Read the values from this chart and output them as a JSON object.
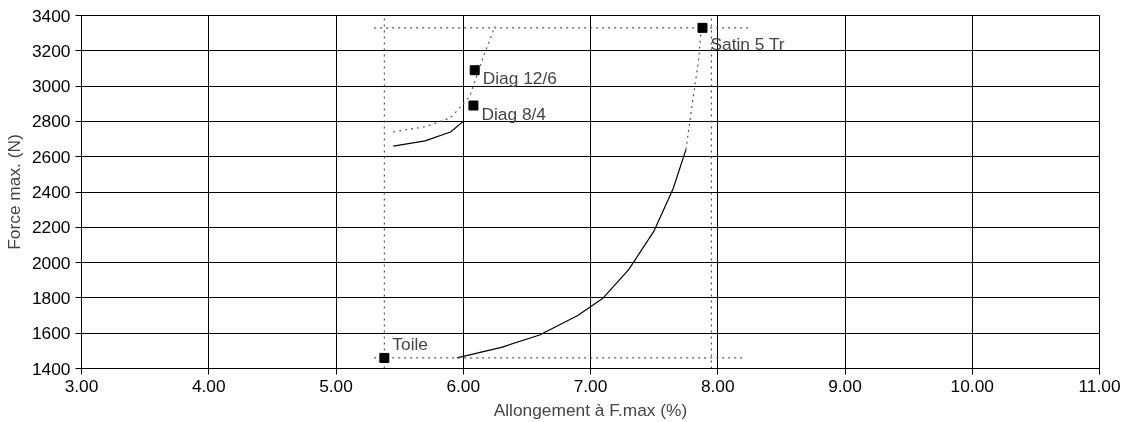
{
  "chart_data": {
    "type": "scatter",
    "xlabel": "Allongement à F.max (%)",
    "ylabel": "Force max. (N)",
    "xlim": [
      3,
      11
    ],
    "xticks": [
      {
        "value": 3,
        "label": "3.00"
      },
      {
        "value": 4,
        "label": "4.00"
      },
      {
        "value": 5,
        "label": "5.00"
      },
      {
        "value": 6,
        "label": "6.00"
      },
      {
        "value": 7,
        "label": "7.00"
      },
      {
        "value": 8,
        "label": "8.00"
      },
      {
        "value": 9,
        "label": "9.00"
      },
      {
        "value": 10,
        "label": "10.00"
      },
      {
        "value": 11,
        "label": "11.00"
      }
    ],
    "ylim": [
      1400,
      3400
    ],
    "yticks": [
      1400,
      1600,
      1800,
      2000,
      2200,
      2400,
      2600,
      2800,
      3000,
      3200,
      3400
    ],
    "grid": true,
    "marker": "square",
    "series": [
      {
        "type": "line",
        "marker": "none",
        "line_style": "solid",
        "color": "#000000",
        "x": [
          5.95,
          6.3,
          6.6,
          6.9,
          7.1,
          7.3,
          7.5,
          7.65,
          7.75
        ],
        "values": [
          1460,
          1520,
          1590,
          1700,
          1800,
          1960,
          2180,
          2420,
          2640
        ]
      },
      {
        "type": "line",
        "marker": "none",
        "line_style": "dotted",
        "color": "#555555",
        "x": [
          7.75,
          7.8,
          7.85,
          7.87
        ],
        "values": [
          2640,
          2900,
          3150,
          3330
        ]
      },
      {
        "type": "line",
        "marker": "none",
        "line_style": "solid",
        "color": "#000000",
        "x": [
          5.45,
          5.7,
          5.9,
          6.0
        ],
        "values": [
          2660,
          2690,
          2740,
          2800
        ]
      },
      {
        "type": "line",
        "marker": "none",
        "line_style": "dotted",
        "color": "#555555",
        "x": [
          5.45,
          5.7,
          5.9,
          6.05,
          6.15,
          6.25
        ],
        "values": [
          2740,
          2770,
          2820,
          2940,
          3150,
          3340
        ]
      },
      {
        "type": "line",
        "marker": "none",
        "line_style": "dotted",
        "color": "#555555",
        "x": [
          5.3,
          8.25
        ],
        "values": [
          3330,
          3330
        ]
      },
      {
        "type": "line",
        "marker": "none",
        "line_style": "dotted",
        "color": "#555555",
        "x": [
          5.3,
          8.2
        ],
        "values": [
          1460,
          1460
        ]
      },
      {
        "type": "line",
        "marker": "none",
        "line_style": "dotted",
        "color": "#555555",
        "x": [
          5.38,
          5.38
        ],
        "values": [
          1400,
          3400
        ]
      },
      {
        "type": "line",
        "marker": "none",
        "line_style": "dotted",
        "color": "#555555",
        "x": [
          7.95,
          7.95
        ],
        "values": [
          1400,
          3400
        ]
      },
      {
        "color": "#000000",
        "x": [
          5.38,
          6.09,
          6.08,
          7.88
        ],
        "values": [
          1460,
          3090,
          2890,
          3330
        ]
      }
    ],
    "annotations": [
      {
        "text": "Toile",
        "x": 5.38,
        "y": 1460
      },
      {
        "text": "Diag 12/6",
        "x": 6.09,
        "y": 3090
      },
      {
        "text": "Diag 8/4",
        "x": 6.08,
        "y": 2890
      },
      {
        "text": "Satin 5 Tr",
        "x": 7.88,
        "y": 3330
      }
    ]
  }
}
